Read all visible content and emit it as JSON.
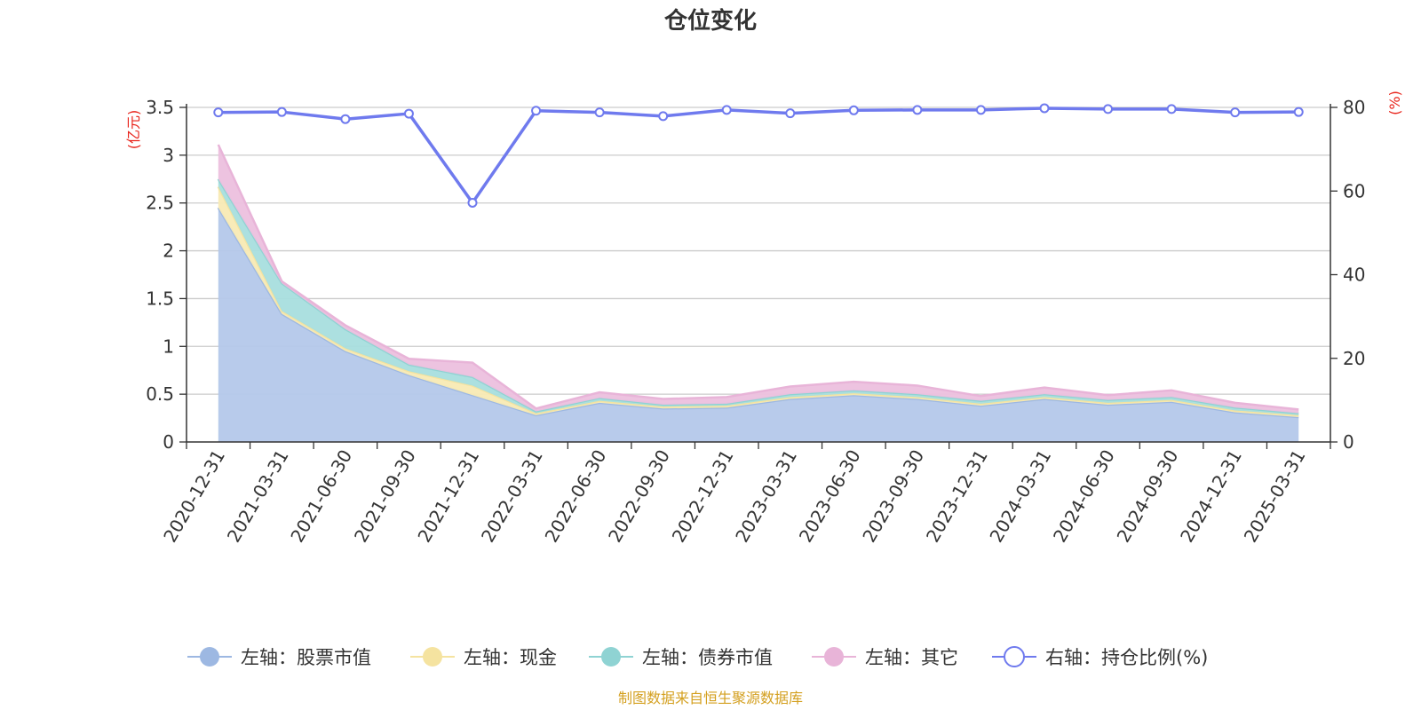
{
  "chart_data": {
    "type": "area",
    "title": "仓位变化",
    "left_axis_unit": "(亿元)",
    "right_axis_unit": "(%)",
    "categories": [
      "2020-12-31",
      "2021-03-31",
      "2021-06-30",
      "2021-09-30",
      "2021-12-31",
      "2022-03-31",
      "2022-06-30",
      "2022-09-30",
      "2022-12-31",
      "2023-03-31",
      "2023-06-30",
      "2023-09-30",
      "2023-12-31",
      "2024-03-31",
      "2024-06-30",
      "2024-09-30",
      "2024-12-31",
      "2025-03-31"
    ],
    "left_ylim": [
      0,
      3.5
    ],
    "left_ticks": [
      "0",
      "0.5",
      "1",
      "1.5",
      "2",
      "2.5",
      "3",
      "3.5"
    ],
    "right_ylim": [
      0,
      80
    ],
    "right_ticks": [
      "0",
      "20",
      "40",
      "60",
      "80"
    ],
    "stack_series": [
      {
        "name": "左轴：股票市值",
        "color": "#9db8e2",
        "fill": "#b4c8ea",
        "values": [
          2.45,
          1.34,
          0.95,
          0.7,
          0.49,
          0.28,
          0.41,
          0.35,
          0.36,
          0.45,
          0.49,
          0.45,
          0.38,
          0.45,
          0.39,
          0.42,
          0.31,
          0.26
        ]
      },
      {
        "name": "左轴：现金",
        "color": "#f5e3a0",
        "fill": "#f8eab4",
        "values": [
          0.22,
          0.03,
          0.03,
          0.04,
          0.1,
          0.02,
          0.02,
          0.02,
          0.02,
          0.02,
          0.02,
          0.02,
          0.02,
          0.02,
          0.02,
          0.02,
          0.02,
          0.02
        ]
      },
      {
        "name": "左轴：债券市值",
        "color": "#8fd3d3",
        "fill": "#a8dede",
        "values": [
          0.08,
          0.29,
          0.2,
          0.07,
          0.09,
          0.02,
          0.03,
          0.02,
          0.02,
          0.03,
          0.03,
          0.03,
          0.03,
          0.03,
          0.03,
          0.03,
          0.03,
          0.02
        ]
      },
      {
        "name": "左轴：其它",
        "color": "#e8b4d8",
        "fill": "#ecc0de",
        "values": [
          0.36,
          0.02,
          0.04,
          0.06,
          0.15,
          0.03,
          0.06,
          0.06,
          0.07,
          0.08,
          0.09,
          0.09,
          0.05,
          0.07,
          0.05,
          0.07,
          0.05,
          0.04
        ]
      }
    ],
    "line_series": {
      "name": "右轴：持仓比例(%)",
      "color": "#6f7aee",
      "values": [
        78.8,
        78.9,
        77.2,
        78.5,
        57.2,
        79.2,
        78.8,
        77.9,
        79.4,
        78.6,
        79.3,
        79.4,
        79.4,
        79.8,
        79.6,
        79.6,
        78.8,
        78.9
      ]
    },
    "legend_position": "bottom",
    "grid": true
  },
  "footer": {
    "source": "制图数据来自恒生聚源数据库"
  }
}
